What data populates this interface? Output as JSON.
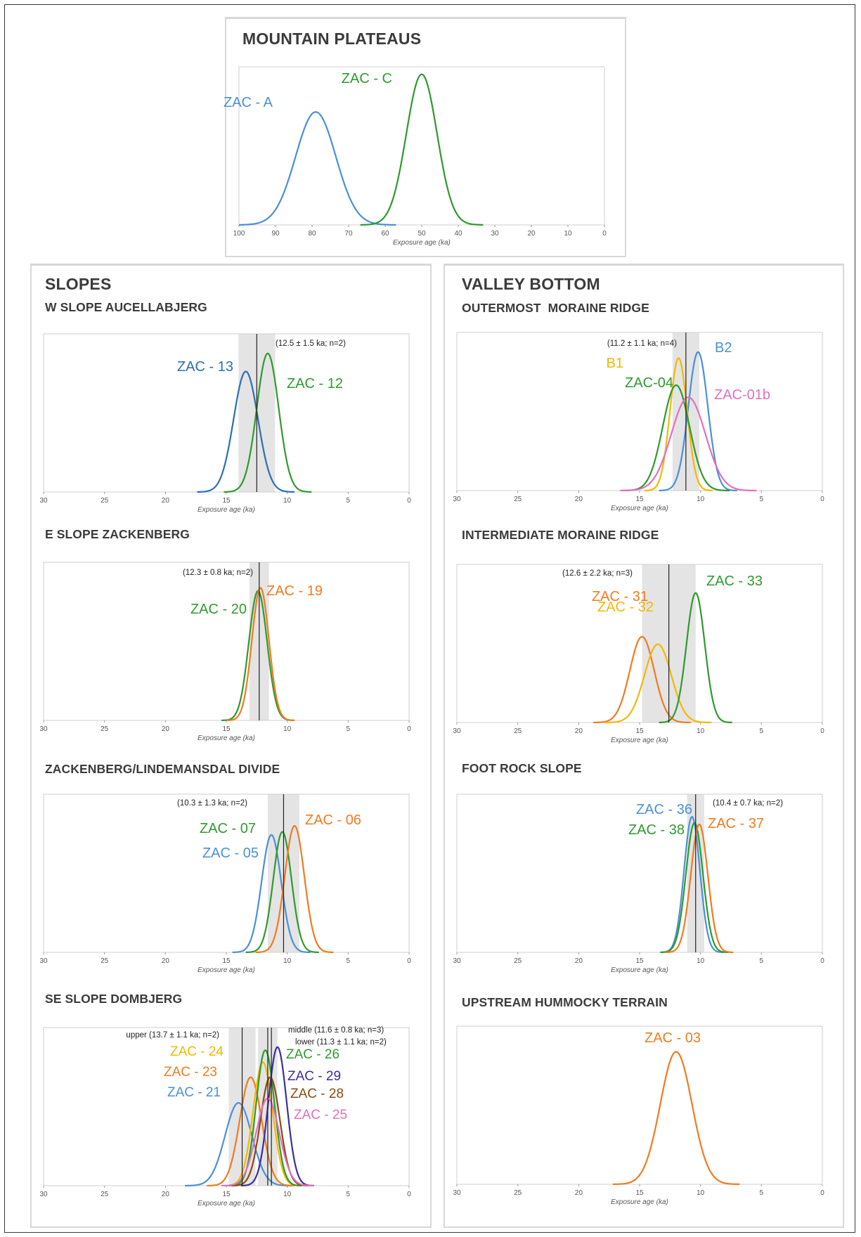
{
  "panels": {
    "plateaus": "MOUNTAIN PLATEAUS",
    "slopes": "SLOPES",
    "valley": "VALLEY BOTTOM"
  },
  "chart_data": [
    {
      "id": "p1",
      "type": "line",
      "title": "",
      "xlabel": "Exposure age (ka)",
      "xlim": [
        100,
        0
      ],
      "xticks": [
        100,
        90,
        80,
        70,
        60,
        50,
        40,
        30,
        20,
        10,
        0
      ],
      "ylim": [
        0,
        1.05
      ],
      "series": [
        {
          "name": "ZAC - A",
          "mean": 79,
          "sd": 5.5,
          "peak": 0.75,
          "color": "#4a90d9"
        },
        {
          "name": "ZAC - C",
          "mean": 50,
          "sd": 4.2,
          "peak": 1.0,
          "color": "#2e9a2e"
        }
      ],
      "vlines": [],
      "bands": [],
      "annotations": []
    },
    {
      "id": "p2",
      "type": "line",
      "title": "W SLOPE AUCELLABJERG",
      "xlabel": "Exposure age (ka)",
      "xlim": [
        30,
        0
      ],
      "xticks": [
        30,
        25,
        20,
        15,
        10,
        5,
        0
      ],
      "ylim": [
        0,
        1.05
      ],
      "series": [
        {
          "name": "ZAC - 13",
          "mean": 13.4,
          "sd": 1.0,
          "peak": 0.8,
          "color": "#2a6fb5"
        },
        {
          "name": "ZAC - 12",
          "mean": 11.6,
          "sd": 0.9,
          "peak": 0.92,
          "color": "#2e9a2e"
        }
      ],
      "vlines": [
        12.5
      ],
      "bands": [
        [
          11.0,
          14.0
        ]
      ],
      "annotations": [
        "(12.5 ± 1.5 ka; n=2)"
      ]
    },
    {
      "id": "p3",
      "type": "line",
      "title": "OUTERMOST  MORAINE RIDGE",
      "xlabel": "Exposure age (ka)",
      "xlim": [
        30,
        0
      ],
      "xticks": [
        30,
        25,
        20,
        15,
        10,
        5,
        0
      ],
      "ylim": [
        0,
        1.05
      ],
      "series": [
        {
          "name": "B2",
          "mean": 10.2,
          "sd": 0.8,
          "peak": 0.92,
          "color": "#4a90d9"
        },
        {
          "name": "B1",
          "mean": 11.8,
          "sd": 0.7,
          "peak": 0.88,
          "color": "#f5b800"
        },
        {
          "name": "ZAC-04",
          "mean": 12.0,
          "sd": 1.1,
          "peak": 0.7,
          "color": "#2e9a2e"
        },
        {
          "name": "ZAC-01b",
          "mean": 11.0,
          "sd": 1.4,
          "peak": 0.62,
          "color": "#e070c0"
        }
      ],
      "vlines": [
        11.2
      ],
      "bands": [
        [
          10.1,
          12.3
        ]
      ],
      "annotations": [
        "(11.2 ± 1.1 ka; n=4)"
      ]
    },
    {
      "id": "p4",
      "type": "line",
      "title": "E SLOPE ZACKENBERG",
      "xlabel": "Exposure age (ka)",
      "xlim": [
        30,
        0
      ],
      "xticks": [
        30,
        25,
        20,
        15,
        10,
        5,
        0
      ],
      "ylim": [
        0,
        1.05
      ],
      "series": [
        {
          "name": "ZAC - 20",
          "mean": 12.4,
          "sd": 0.75,
          "peak": 0.86,
          "color": "#2e9a2e"
        },
        {
          "name": "ZAC - 19",
          "mean": 12.2,
          "sd": 0.7,
          "peak": 0.88,
          "color": "#f07b20"
        }
      ],
      "vlines": [
        12.3
      ],
      "bands": [
        [
          11.5,
          13.1
        ]
      ],
      "annotations": [
        "(12.3 ± 0.8 ka; n=2)"
      ]
    },
    {
      "id": "p5",
      "type": "line",
      "title": "INTERMEDIATE MORAINE RIDGE",
      "xlabel": "Exposure age (ka)",
      "xlim": [
        30,
        0
      ],
      "xticks": [
        30,
        25,
        20,
        15,
        10,
        5,
        0
      ],
      "ylim": [
        0,
        1.05
      ],
      "series": [
        {
          "name": "ZAC - 31",
          "mean": 14.8,
          "sd": 1.0,
          "peak": 0.57,
          "color": "#f07b20"
        },
        {
          "name": "ZAC - 32",
          "mean": 13.5,
          "sd": 1.1,
          "peak": 0.52,
          "color": "#f5b800"
        },
        {
          "name": "ZAC - 33",
          "mean": 10.4,
          "sd": 0.75,
          "peak": 0.86,
          "color": "#2e9a2e"
        }
      ],
      "vlines": [
        12.6
      ],
      "bands": [
        [
          10.4,
          14.8
        ]
      ],
      "annotations": [
        "(12.6 ± 2.2 ka; n=3)"
      ]
    },
    {
      "id": "p6",
      "type": "line",
      "title": "ZACKENBERG/LINDEMANSDAL DIVIDE",
      "xlabel": "Exposure age (ka)",
      "xlim": [
        30,
        0
      ],
      "xticks": [
        30,
        25,
        20,
        15,
        10,
        5,
        0
      ],
      "ylim": [
        0,
        1.05
      ],
      "series": [
        {
          "name": "ZAC - 05",
          "mean": 11.3,
          "sd": 0.8,
          "peak": 0.78,
          "color": "#4a90d9"
        },
        {
          "name": "ZAC - 07",
          "mean": 10.4,
          "sd": 0.75,
          "peak": 0.8,
          "color": "#2e9a2e"
        },
        {
          "name": "ZAC - 06",
          "mean": 9.4,
          "sd": 0.8,
          "peak": 0.84,
          "color": "#f07b20"
        }
      ],
      "vlines": [
        10.3
      ],
      "bands": [
        [
          9.0,
          11.6
        ]
      ],
      "annotations": [
        "(10.3 ± 1.3 ka; n=2)"
      ]
    },
    {
      "id": "p7",
      "type": "line",
      "title": "FOOT ROCK SLOPE",
      "xlabel": "Exposure age (ka)",
      "xlim": [
        30,
        0
      ],
      "xticks": [
        30,
        25,
        20,
        15,
        10,
        5,
        0
      ],
      "ylim": [
        0,
        1.05
      ],
      "series": [
        {
          "name": "ZAC - 36",
          "mean": 10.7,
          "sd": 0.65,
          "peak": 0.9,
          "color": "#4a90d9"
        },
        {
          "name": "ZAC - 38",
          "mean": 10.5,
          "sd": 0.7,
          "peak": 0.86,
          "color": "#2e9a2e"
        },
        {
          "name": "ZAC - 37",
          "mean": 10.1,
          "sd": 0.7,
          "peak": 0.85,
          "color": "#f07b20"
        }
      ],
      "vlines": [
        10.4
      ],
      "bands": [
        [
          9.7,
          11.1
        ]
      ],
      "annotations": [
        "(10.4 ± 0.7 ka; n=2)"
      ]
    },
    {
      "id": "p8",
      "type": "line",
      "title": "SE SLOPE DOMBJERG",
      "xlabel": "Exposure age (ka)",
      "xlim": [
        30,
        0
      ],
      "xticks": [
        30,
        25,
        20,
        15,
        10,
        5,
        0
      ],
      "ylim": [
        0,
        1.05
      ],
      "series": [
        {
          "name": "ZAC - 21",
          "mean": 14.0,
          "sd": 1.1,
          "peak": 0.55,
          "color": "#4a90d9"
        },
        {
          "name": "ZAC - 23",
          "mean": 13.0,
          "sd": 0.9,
          "peak": 0.72,
          "color": "#f07b20"
        },
        {
          "name": "ZAC - 24",
          "mean": 12.0,
          "sd": 0.8,
          "peak": 0.82,
          "color": "#f5b800"
        },
        {
          "name": "ZAC - 26",
          "mean": 11.8,
          "sd": 0.75,
          "peak": 0.9,
          "color": "#2e9a2e"
        },
        {
          "name": "ZAC - 29",
          "mean": 10.8,
          "sd": 0.75,
          "peak": 0.92,
          "color": "#3a2fa0"
        },
        {
          "name": "ZAC - 28",
          "mean": 11.4,
          "sd": 0.8,
          "peak": 0.72,
          "color": "#8a4a10"
        },
        {
          "name": "ZAC - 25",
          "mean": 11.6,
          "sd": 0.95,
          "peak": 0.58,
          "color": "#e070c0"
        }
      ],
      "vlines": [
        13.7,
        11.6,
        11.3
      ],
      "bands": [
        [
          12.6,
          14.8
        ],
        [
          10.8,
          12.4
        ]
      ],
      "annotations": [
        "upper (13.7 ± 1.1 ka; n=2)",
        "middle (11.6 ± 0.8 ka; n=3)",
        "lower (11.3 ± 1.1 ka; n=2)"
      ]
    },
    {
      "id": "p9",
      "type": "line",
      "title": "UPSTREAM HUMMOCKY TERRAIN",
      "xlabel": "Exposure age (ka)",
      "xlim": [
        30,
        0
      ],
      "xticks": [
        30,
        25,
        20,
        15,
        10,
        5,
        0
      ],
      "ylim": [
        0,
        1.05
      ],
      "series": [
        {
          "name": "ZAC - 03",
          "mean": 12.0,
          "sd": 1.3,
          "peak": 0.88,
          "color": "#f07b20"
        }
      ],
      "vlines": [],
      "bands": [],
      "annotations": []
    }
  ]
}
